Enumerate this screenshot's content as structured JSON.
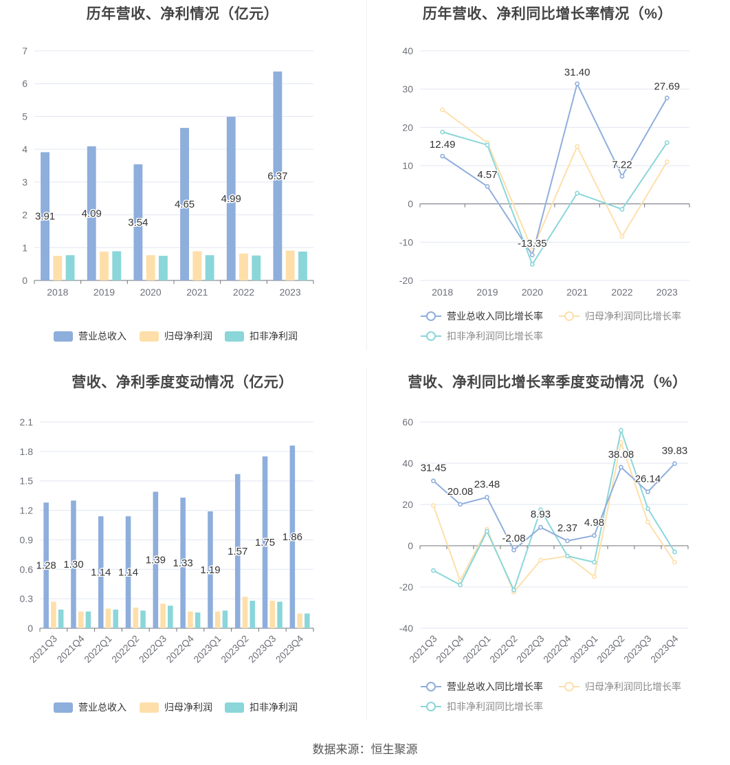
{
  "footer": "数据来源：恒生聚源",
  "colors": {
    "revenue": "#8eaedc",
    "net_profit": "#fedfaa",
    "deducted_profit": "#8ad6d9",
    "axis": "#6e7079",
    "grid": "#e0e6f1"
  },
  "chart_data": [
    {
      "type": "bar",
      "title": "历年营收、净利情况（亿元）",
      "categories": [
        "2018",
        "2019",
        "2020",
        "2021",
        "2022",
        "2023"
      ],
      "ylim": [
        0,
        7
      ],
      "yticks": [
        "0",
        "1",
        "2",
        "3",
        "4",
        "5",
        "6",
        "7"
      ],
      "grid": true,
      "legend_position": "bottom",
      "legend_entries": [
        "营业总收入",
        "归母净利润",
        "扣非净利润"
      ],
      "series": [
        {
          "name": "营业总收入",
          "values": [
            3.91,
            4.09,
            3.54,
            4.65,
            4.99,
            6.37
          ],
          "data_labels": [
            "3.91",
            "4.09",
            "3.54",
            "4.65",
            "4.99",
            "6.37"
          ]
        },
        {
          "name": "归母净利润",
          "values": [
            0.75,
            0.88,
            0.77,
            0.89,
            0.82,
            0.91
          ]
        },
        {
          "name": "扣非净利润",
          "values": [
            0.77,
            0.89,
            0.75,
            0.77,
            0.76,
            0.88
          ]
        }
      ]
    },
    {
      "type": "line",
      "title": "历年营收、净利同比增长率情况（%）",
      "categories": [
        "2018",
        "2019",
        "2020",
        "2021",
        "2022",
        "2023"
      ],
      "ylim": [
        -20,
        40
      ],
      "yticks": [
        "-20",
        "-10",
        "0",
        "10",
        "20",
        "30",
        "40"
      ],
      "grid": true,
      "legend_position": "bottom",
      "legend_entries": [
        "营业总收入同比增长率",
        "归母净利润同比增长率",
        "扣非净利润同比增长率"
      ],
      "series": [
        {
          "name": "营业总收入同比增长率",
          "values": [
            12.49,
            4.57,
            -13.35,
            31.4,
            7.22,
            27.69
          ],
          "data_labels": [
            "12.49",
            "4.57",
            "-13.35",
            "31.40",
            "7.22",
            "27.69"
          ]
        },
        {
          "name": "归母净利润同比增长率",
          "values": [
            24.6,
            16.0,
            -12.0,
            15.0,
            -8.5,
            11.0
          ]
        },
        {
          "name": "扣非净利润同比增长率",
          "values": [
            18.8,
            15.4,
            -15.8,
            2.8,
            -1.4,
            16.0
          ]
        }
      ]
    },
    {
      "type": "bar",
      "title": "营收、净利季度变动情况（亿元）",
      "categories": [
        "2021Q3",
        "2021Q4",
        "2022Q1",
        "2022Q2",
        "2022Q3",
        "2022Q4",
        "2023Q1",
        "2023Q2",
        "2023Q3",
        "2023Q4"
      ],
      "ylim": [
        0,
        2.1
      ],
      "yticks": [
        "0",
        "0.3",
        "0.6",
        "0.9",
        "1.2",
        "1.5",
        "1.8",
        "2.1"
      ],
      "grid": true,
      "legend_position": "bottom",
      "legend_entries": [
        "营业总收入",
        "归母净利润",
        "扣非净利润"
      ],
      "series": [
        {
          "name": "营业总收入",
          "values": [
            1.28,
            1.3,
            1.14,
            1.14,
            1.39,
            1.33,
            1.19,
            1.57,
            1.75,
            1.86
          ],
          "data_labels": [
            "1.28",
            "1.30",
            "1.14",
            "1.14",
            "1.39",
            "1.33",
            "1.19",
            "1.57",
            "1.75",
            "1.86"
          ]
        },
        {
          "name": "归母净利润",
          "values": [
            0.27,
            0.17,
            0.2,
            0.21,
            0.25,
            0.17,
            0.17,
            0.32,
            0.28,
            0.15
          ]
        },
        {
          "name": "扣非净利润",
          "values": [
            0.19,
            0.17,
            0.19,
            0.18,
            0.23,
            0.16,
            0.18,
            0.28,
            0.27,
            0.15
          ]
        }
      ]
    },
    {
      "type": "line",
      "title": "营收、净利同比增长率季度变动情况（%）",
      "categories": [
        "2021Q3",
        "2021Q4",
        "2022Q1",
        "2022Q2",
        "2022Q3",
        "2022Q4",
        "2023Q1",
        "2023Q2",
        "2023Q3",
        "2023Q4"
      ],
      "ylim": [
        -40,
        60
      ],
      "yticks": [
        "-40",
        "-20",
        "0",
        "20",
        "40",
        "60"
      ],
      "grid": true,
      "legend_position": "bottom",
      "legend_entries": [
        "营业总收入同比增长率",
        "归母净利润同比增长率",
        "扣非净利润同比增长率"
      ],
      "series": [
        {
          "name": "营业总收入同比增长率",
          "values": [
            31.45,
            20.08,
            23.48,
            -2.08,
            8.93,
            2.37,
            4.98,
            38.08,
            26.14,
            39.83
          ],
          "data_labels": [
            "31.45",
            "20.08",
            "23.48",
            "-2.08",
            "8.93",
            "2.37",
            "4.98",
            "38.08",
            "26.14",
            "39.83"
          ]
        },
        {
          "name": "归母净利润同比增长率",
          "values": [
            19.5,
            -17.0,
            8.0,
            -22.5,
            -7.0,
            -5.0,
            -15.0,
            50.0,
            11.5,
            -8.0
          ]
        },
        {
          "name": "扣非净利润同比增长率",
          "values": [
            -12.0,
            -19.0,
            7.0,
            -21.5,
            17.5,
            -5.0,
            -8.0,
            56.0,
            18.0,
            -3.0
          ]
        }
      ]
    }
  ]
}
